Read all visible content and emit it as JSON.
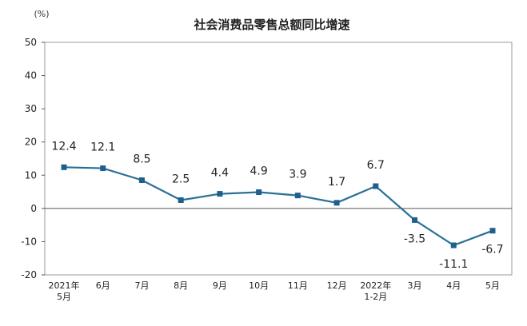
{
  "chart_data": {
    "type": "line",
    "title": "社会消费品零售总额同比增速",
    "unit": "(%)",
    "categories": [
      [
        "2021年",
        "5月"
      ],
      [
        "6月"
      ],
      [
        "7月"
      ],
      [
        "8月"
      ],
      [
        "9月"
      ],
      [
        "10月"
      ],
      [
        "11月"
      ],
      [
        "12月"
      ],
      [
        "2022年",
        "1-2月"
      ],
      [
        "3月"
      ],
      [
        "4月"
      ],
      [
        "5月"
      ]
    ],
    "values": [
      12.4,
      12.1,
      8.5,
      2.5,
      4.4,
      4.9,
      3.9,
      1.7,
      6.7,
      -3.5,
      -11.1,
      -6.7
    ],
    "data_labels": [
      "12.4",
      "12.1",
      "8.5",
      "2.5",
      "4.4",
      "4.9",
      "3.9",
      "1.7",
      "6.7",
      "-3.5",
      "-11.1",
      "-6.7"
    ],
    "ylim": [
      -20,
      50
    ],
    "yticks": [
      -20,
      -10,
      0,
      10,
      20,
      30,
      40,
      50
    ],
    "grid": false,
    "legend": "none",
    "colors": {
      "line": "#2a6f97",
      "marker": "#1f5f8b",
      "text": "#222222"
    }
  }
}
